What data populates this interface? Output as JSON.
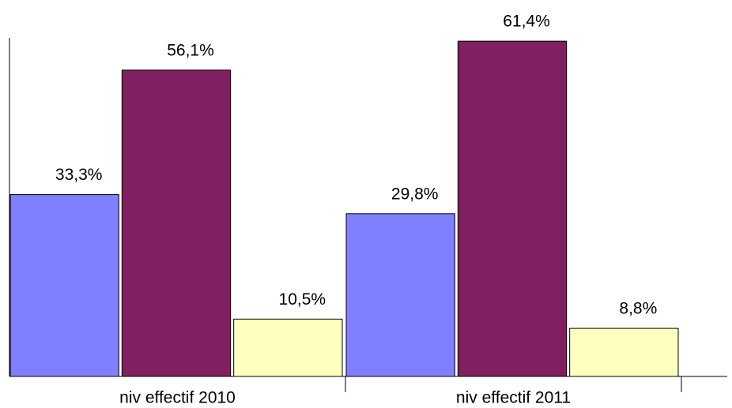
{
  "chart_data": {
    "type": "bar",
    "categories": [
      "niv effectif 2010",
      "niv effectif 2011"
    ],
    "series": [
      {
        "color": "#8080ff",
        "values": [
          33.3,
          29.8
        ],
        "value_labels": [
          "33,3%",
          "29,8%"
        ]
      },
      {
        "color": "#802060",
        "values": [
          56.1,
          61.4
        ],
        "value_labels": [
          "56,1%",
          "61,4%"
        ]
      },
      {
        "color": "#ffffc0",
        "values": [
          10.5,
          8.8
        ],
        "value_labels": [
          "10,5%",
          "8,8%"
        ]
      }
    ],
    "ylim": [
      0,
      62
    ]
  }
}
